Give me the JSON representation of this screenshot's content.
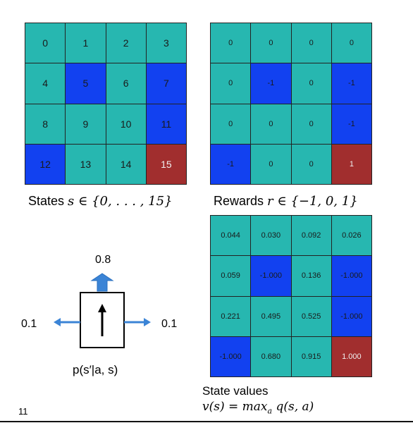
{
  "colors": {
    "teal": "#27b7b0",
    "blue": "#1241f0",
    "red": "#a12e2e",
    "arrow_blue": "#3b84d6"
  },
  "states_grid": {
    "cells": [
      {
        "label": "0",
        "color": "teal"
      },
      {
        "label": "1",
        "color": "teal"
      },
      {
        "label": "2",
        "color": "teal"
      },
      {
        "label": "3",
        "color": "teal"
      },
      {
        "label": "4",
        "color": "teal"
      },
      {
        "label": "5",
        "color": "blue"
      },
      {
        "label": "6",
        "color": "teal"
      },
      {
        "label": "7",
        "color": "blue"
      },
      {
        "label": "8",
        "color": "teal"
      },
      {
        "label": "9",
        "color": "teal"
      },
      {
        "label": "10",
        "color": "teal"
      },
      {
        "label": "11",
        "color": "blue"
      },
      {
        "label": "12",
        "color": "blue"
      },
      {
        "label": "13",
        "color": "teal"
      },
      {
        "label": "14",
        "color": "teal"
      },
      {
        "label": "15",
        "color": "red"
      }
    ]
  },
  "rewards_grid": {
    "cells": [
      {
        "label": "0",
        "color": "teal"
      },
      {
        "label": "0",
        "color": "teal"
      },
      {
        "label": "0",
        "color": "teal"
      },
      {
        "label": "0",
        "color": "teal"
      },
      {
        "label": "0",
        "color": "teal"
      },
      {
        "label": "-1",
        "color": "blue"
      },
      {
        "label": "0",
        "color": "teal"
      },
      {
        "label": "-1",
        "color": "blue"
      },
      {
        "label": "0",
        "color": "teal"
      },
      {
        "label": "0",
        "color": "teal"
      },
      {
        "label": "0",
        "color": "teal"
      },
      {
        "label": "-1",
        "color": "blue"
      },
      {
        "label": "-1",
        "color": "blue"
      },
      {
        "label": "0",
        "color": "teal"
      },
      {
        "label": "0",
        "color": "teal"
      },
      {
        "label": "1",
        "color": "red"
      }
    ]
  },
  "values_grid": {
    "cells": [
      {
        "label": "0.044",
        "color": "teal"
      },
      {
        "label": "0.030",
        "color": "teal"
      },
      {
        "label": "0.092",
        "color": "teal"
      },
      {
        "label": "0.026",
        "color": "teal"
      },
      {
        "label": "0.059",
        "color": "teal"
      },
      {
        "label": "-1.000",
        "color": "blue"
      },
      {
        "label": "0.136",
        "color": "teal"
      },
      {
        "label": "-1.000",
        "color": "blue"
      },
      {
        "label": "0.221",
        "color": "teal"
      },
      {
        "label": "0.495",
        "color": "teal"
      },
      {
        "label": "0.525",
        "color": "teal"
      },
      {
        "label": "-1.000",
        "color": "blue"
      },
      {
        "label": "-1.000",
        "color": "blue"
      },
      {
        "label": "0.680",
        "color": "teal"
      },
      {
        "label": "0.915",
        "color": "teal"
      },
      {
        "label": "1.000",
        "color": "red"
      }
    ]
  },
  "captions": {
    "states_word": "States",
    "states_math": "s ∈ {0, . . . , 15}",
    "rewards_word": "Rewards",
    "rewards_math": "r ∈ {−1, 0, 1}",
    "values_line1": "State values",
    "values_line2_lhs": "v(s) = max",
    "values_line2_sub": "a",
    "values_line2_rhs": " q(s, a)",
    "transition": "p(s′|a, s)"
  },
  "transition_probs": {
    "up": "0.8",
    "left": "0.1",
    "right": "0.1"
  },
  "page_number": "11"
}
